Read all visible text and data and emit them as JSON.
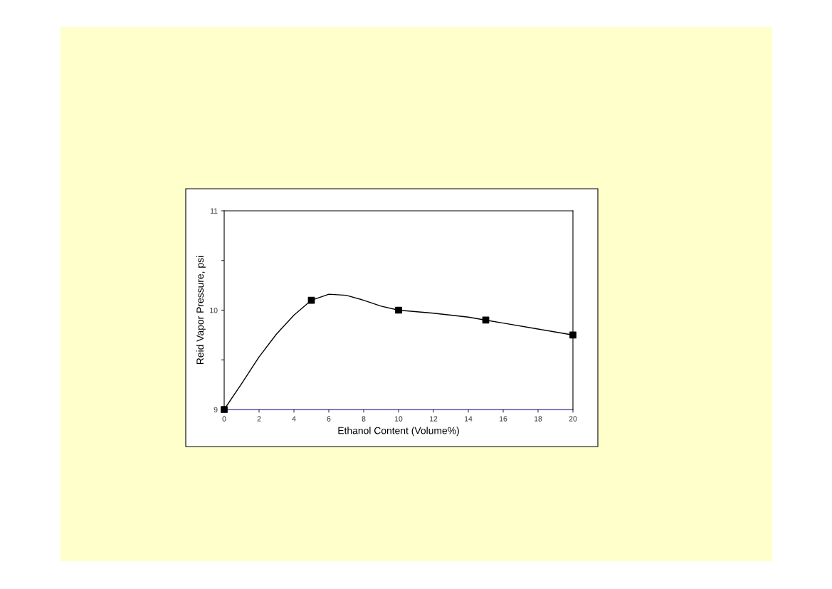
{
  "chart_data": {
    "type": "line",
    "xlabel": "Ethanol Content (Volume%)",
    "ylabel": "Reid Vapor Pressure, psi",
    "xlim": [
      0,
      20
    ],
    "xticks": [
      0,
      2,
      4,
      6,
      8,
      10,
      12,
      14,
      16,
      18,
      20
    ],
    "ylim": [
      9,
      11
    ],
    "yticks": [
      9,
      {
        "value": 9.5,
        "label": null
      },
      10,
      {
        "value": 10.5,
        "label": null
      },
      11
    ],
    "grid": false,
    "legend": false,
    "series": [
      {
        "color": "#000000",
        "marker": "none",
        "x": [
          0,
          1,
          2,
          3,
          4,
          5,
          6,
          7,
          8,
          9,
          10,
          12,
          14,
          15,
          16,
          18,
          20
        ],
        "values": [
          9.0,
          9.26,
          9.53,
          9.76,
          9.95,
          10.1,
          10.16,
          10.15,
          10.1,
          10.04,
          10.0,
          9.97,
          9.93,
          9.9,
          9.87,
          9.81,
          9.75
        ]
      },
      {
        "type": "scatter",
        "color": "#000000",
        "marker": "square",
        "x": [
          0,
          5,
          10,
          15,
          20
        ],
        "values": [
          9.0,
          10.1,
          10.0,
          9.9,
          9.75
        ]
      }
    ]
  }
}
